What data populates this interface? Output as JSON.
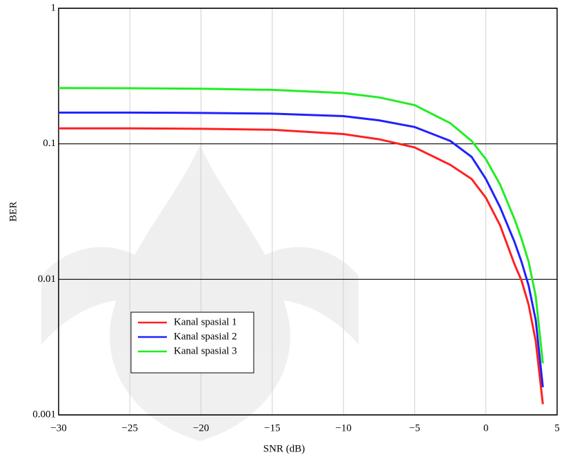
{
  "chart_data": {
    "type": "line",
    "x_label": "SNR (dB)",
    "y_label": "BER",
    "x": [
      -30,
      -25,
      -20,
      -15,
      -10,
      -7.5,
      -5,
      -2.5,
      -1,
      0,
      1,
      2,
      2.5,
      3,
      3.5,
      4
    ],
    "series": [
      {
        "name": "Kanal spasial 1",
        "color": "#ff2020",
        "values": [
          0.13,
          0.13,
          0.129,
          0.127,
          0.118,
          0.108,
          0.094,
          0.07,
          0.055,
          0.04,
          0.025,
          0.013,
          0.0098,
          0.0065,
          0.0035,
          0.0012
        ]
      },
      {
        "name": "Kanal spasial 2",
        "color": "#2020ff",
        "values": [
          0.17,
          0.17,
          0.169,
          0.167,
          0.16,
          0.149,
          0.133,
          0.105,
          0.08,
          0.055,
          0.034,
          0.019,
          0.0135,
          0.009,
          0.005,
          0.0016
        ]
      },
      {
        "name": "Kanal spasial 3",
        "color": "#20ee20",
        "values": [
          0.258,
          0.257,
          0.255,
          0.25,
          0.237,
          0.22,
          0.193,
          0.142,
          0.105,
          0.077,
          0.05,
          0.028,
          0.02,
          0.0135,
          0.0075,
          0.0024
        ]
      }
    ],
    "xlim": [
      -30,
      5
    ],
    "xticks": [
      {
        "value": -30,
        "label": "−30"
      },
      {
        "value": -25,
        "label": "−25"
      },
      {
        "value": -20,
        "label": "−20"
      },
      {
        "value": -15,
        "label": "−15"
      },
      {
        "value": -10,
        "label": "−10"
      },
      {
        "value": -5,
        "label": "−5"
      },
      0,
      5
    ],
    "ylim": [
      0.001,
      1
    ],
    "yticks": [
      0.001,
      0.01,
      0.1,
      1
    ],
    "yscale": "log",
    "grid": true,
    "legend": "lower-left"
  }
}
